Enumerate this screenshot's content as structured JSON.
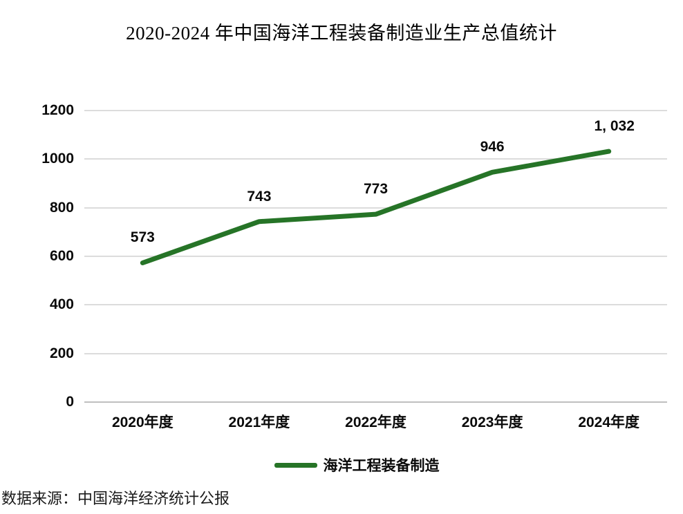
{
  "title": "2020-2024 年中国海洋工程装备制造业生产总值统计",
  "source_note": "数据来源：中国海洋经济统计公报",
  "legend": {
    "label": "海洋工程装备制造"
  },
  "colors": {
    "series_green": "#267427",
    "gridline": "#dcdcdc",
    "zero_line": "#bfbfbf",
    "label_text": "#0a0a0a"
  },
  "chart_data": {
    "type": "line",
    "title": "2020-2024 年中国海洋工程装备制造业生产总值统计",
    "categories": [
      "2020年度",
      "2021年度",
      "2022年度",
      "2023年度",
      "2024年度"
    ],
    "series": [
      {
        "name": "海洋工程装备制造",
        "values": [
          573,
          743,
          773,
          946,
          1032
        ],
        "point_labels": [
          "573",
          "743",
          "773",
          "946",
          "1, 032"
        ],
        "color": "#267427"
      }
    ],
    "xlabel": "",
    "ylabel": "",
    "ylim": [
      0,
      1200
    ],
    "yticks": [
      0,
      200,
      400,
      600,
      800,
      1000,
      1200
    ],
    "grid": true,
    "legend_position": "bottom",
    "source": "数据来源：中国海洋经济统计公报"
  }
}
